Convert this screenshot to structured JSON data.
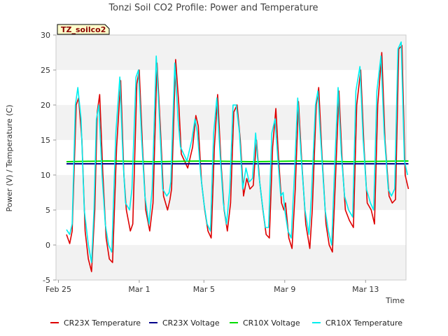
{
  "chart_data": {
    "type": "line",
    "title": "Tonzi Soil CO2 Profile: Power and Temperature",
    "badge": "TZ_soilco2",
    "xlabel": "Time",
    "ylabel": "Power (V) / Temperature (C)",
    "xlim": [
      -0.15,
      21.5
    ],
    "ylim": [
      -5,
      30
    ],
    "x_units": "days since Feb 25",
    "x_ticks": [
      {
        "x": 0,
        "label": "Feb 25"
      },
      {
        "x": 5,
        "label": "Mar 1"
      },
      {
        "x": 9,
        "label": "Mar 5"
      },
      {
        "x": 14,
        "label": "Mar 9"
      },
      {
        "x": 19,
        "label": "Mar 13"
      }
    ],
    "y_ticks": [
      -5,
      0,
      5,
      10,
      15,
      20,
      25,
      30
    ],
    "grid": "horizontal bands",
    "legend_position": "bottom",
    "series": [
      {
        "name": "CR23X Temperature",
        "color": "#dd0000",
        "values": [
          [
            0.5,
            1.5
          ],
          [
            0.7,
            0.2
          ],
          [
            0.85,
            2.0
          ],
          [
            1.1,
            20
          ],
          [
            1.25,
            21
          ],
          [
            1.45,
            15
          ],
          [
            1.65,
            2.0
          ],
          [
            1.85,
            -2.0
          ],
          [
            2.05,
            -3.8
          ],
          [
            2.25,
            5
          ],
          [
            2.4,
            19
          ],
          [
            2.55,
            21.5
          ],
          [
            2.75,
            10
          ],
          [
            2.95,
            1.0
          ],
          [
            3.15,
            -2.0
          ],
          [
            3.35,
            -2.5
          ],
          [
            3.6,
            14
          ],
          [
            3.85,
            23.5
          ],
          [
            4.05,
            10
          ],
          [
            4.2,
            5.0
          ],
          [
            4.45,
            2.0
          ],
          [
            4.6,
            3.0
          ],
          [
            4.85,
            23
          ],
          [
            5.0,
            25
          ],
          [
            5.2,
            14
          ],
          [
            5.4,
            5.0
          ],
          [
            5.65,
            2.0
          ],
          [
            5.85,
            6.0
          ],
          [
            6.1,
            26
          ],
          [
            6.3,
            17
          ],
          [
            6.5,
            7.0
          ],
          [
            6.75,
            5.0
          ],
          [
            6.9,
            6.5
          ],
          [
            7.0,
            8.0
          ],
          [
            7.25,
            26.5
          ],
          [
            7.45,
            20
          ],
          [
            7.6,
            13
          ],
          [
            7.8,
            12
          ],
          [
            8.0,
            11
          ],
          [
            8.3,
            14
          ],
          [
            8.5,
            18.5
          ],
          [
            8.65,
            17
          ],
          [
            8.85,
            9.0
          ],
          [
            9.05,
            5.0
          ],
          [
            9.25,
            2.0
          ],
          [
            9.45,
            1.0
          ],
          [
            9.65,
            14
          ],
          [
            9.85,
            21.5
          ],
          [
            10.05,
            12
          ],
          [
            10.25,
            5.0
          ],
          [
            10.45,
            2.0
          ],
          [
            10.65,
            6.0
          ],
          [
            10.85,
            19
          ],
          [
            11.05,
            20
          ],
          [
            11.25,
            15
          ],
          [
            11.45,
            7.0
          ],
          [
            11.65,
            9.5
          ],
          [
            11.85,
            8.0
          ],
          [
            12.05,
            8.5
          ],
          [
            12.25,
            15
          ],
          [
            12.45,
            9.0
          ],
          [
            12.65,
            5.0
          ],
          [
            12.85,
            1.5
          ],
          [
            13.05,
            1.0
          ],
          [
            13.25,
            14
          ],
          [
            13.45,
            19.5
          ],
          [
            13.6,
            13
          ],
          [
            13.8,
            6.0
          ],
          [
            13.95,
            5.0
          ],
          [
            14.05,
            6.0
          ],
          [
            14.25,
            1.0
          ],
          [
            14.45,
            -0.5
          ],
          [
            14.65,
            8.0
          ],
          [
            14.85,
            20.5
          ],
          [
            15.05,
            12
          ],
          [
            15.3,
            3.0
          ],
          [
            15.55,
            -0.5
          ],
          [
            15.7,
            5.0
          ],
          [
            15.95,
            20
          ],
          [
            16.1,
            22.5
          ],
          [
            16.3,
            13
          ],
          [
            16.55,
            3.0
          ],
          [
            16.75,
            0.0
          ],
          [
            16.95,
            -1.0
          ],
          [
            17.15,
            10
          ],
          [
            17.35,
            22
          ],
          [
            17.55,
            12
          ],
          [
            17.75,
            5.0
          ],
          [
            18.0,
            3.5
          ],
          [
            18.25,
            2.5
          ],
          [
            18.45,
            20
          ],
          [
            18.7,
            25
          ],
          [
            18.9,
            14
          ],
          [
            19.1,
            6.0
          ],
          [
            19.35,
            5.0
          ],
          [
            19.55,
            3.0
          ],
          [
            19.75,
            20
          ],
          [
            20.0,
            27.5
          ],
          [
            20.2,
            15
          ],
          [
            20.45,
            7.0
          ],
          [
            20.65,
            6.0
          ],
          [
            20.85,
            6.5
          ],
          [
            21.05,
            28
          ],
          [
            21.25,
            28.5
          ],
          [
            21.45,
            10
          ],
          [
            21.65,
            8.0
          ]
        ]
      },
      {
        "name": "CR23X Voltage",
        "color": "#00008b",
        "values": [
          [
            0.5,
            11.6
          ],
          [
            21.65,
            11.6
          ]
        ]
      },
      {
        "name": "CR10X Voltage",
        "color": "#00dd00",
        "values": [
          [
            0.5,
            11.9
          ],
          [
            3.0,
            12.0
          ],
          [
            6.0,
            11.9
          ],
          [
            9.0,
            12.0
          ],
          [
            12.0,
            11.9
          ],
          [
            15.0,
            12.0
          ],
          [
            18.0,
            11.9
          ],
          [
            21.65,
            12.0
          ]
        ]
      },
      {
        "name": "CR10X Temperature",
        "color": "#00eeee",
        "values": [
          [
            0.5,
            2.2
          ],
          [
            0.7,
            1.5
          ],
          [
            0.85,
            3.0
          ],
          [
            1.05,
            20
          ],
          [
            1.2,
            22.5
          ],
          [
            1.4,
            18
          ],
          [
            1.6,
            5.0
          ],
          [
            1.85,
            0.0
          ],
          [
            2.05,
            -2.5
          ],
          [
            2.2,
            5.0
          ],
          [
            2.35,
            18
          ],
          [
            2.5,
            20
          ],
          [
            2.7,
            10
          ],
          [
            2.9,
            3.0
          ],
          [
            3.1,
            0.0
          ],
          [
            3.3,
            -1.0
          ],
          [
            3.55,
            16
          ],
          [
            3.8,
            24
          ],
          [
            4.0,
            12
          ],
          [
            4.15,
            6.0
          ],
          [
            4.4,
            5.0
          ],
          [
            4.55,
            8.0
          ],
          [
            4.8,
            24
          ],
          [
            4.95,
            25
          ],
          [
            5.15,
            15
          ],
          [
            5.35,
            7.0
          ],
          [
            5.6,
            3.0
          ],
          [
            5.8,
            8.0
          ],
          [
            6.05,
            27
          ],
          [
            6.25,
            18
          ],
          [
            6.45,
            8.0
          ],
          [
            6.7,
            7.0
          ],
          [
            6.85,
            7.5
          ],
          [
            6.95,
            9.0
          ],
          [
            7.2,
            26
          ],
          [
            7.4,
            18
          ],
          [
            7.55,
            14
          ],
          [
            7.75,
            13
          ],
          [
            7.95,
            12
          ],
          [
            8.25,
            15
          ],
          [
            8.45,
            18
          ],
          [
            8.6,
            16
          ],
          [
            8.8,
            10
          ],
          [
            9.0,
            6.0
          ],
          [
            9.2,
            3.0
          ],
          [
            9.4,
            2.0
          ],
          [
            9.6,
            16
          ],
          [
            9.8,
            21
          ],
          [
            10.0,
            13
          ],
          [
            10.2,
            6.0
          ],
          [
            10.4,
            3.0
          ],
          [
            10.6,
            8.0
          ],
          [
            10.8,
            20
          ],
          [
            11.0,
            20
          ],
          [
            11.2,
            16
          ],
          [
            11.4,
            8.0
          ],
          [
            11.6,
            11
          ],
          [
            11.8,
            9.0
          ],
          [
            12.0,
            9.5
          ],
          [
            12.2,
            16
          ],
          [
            12.4,
            10
          ],
          [
            12.6,
            6.0
          ],
          [
            12.8,
            2.5
          ],
          [
            13.0,
            2.5
          ],
          [
            13.2,
            16
          ],
          [
            13.4,
            18
          ],
          [
            13.55,
            13
          ],
          [
            13.75,
            7.0
          ],
          [
            13.9,
            7.5
          ],
          [
            14.0,
            5.0
          ],
          [
            14.2,
            2.0
          ],
          [
            14.4,
            1.0
          ],
          [
            14.6,
            10
          ],
          [
            14.8,
            21
          ],
          [
            15.0,
            13
          ],
          [
            15.25,
            5.0
          ],
          [
            15.5,
            1.5
          ],
          [
            15.65,
            7.0
          ],
          [
            15.9,
            20
          ],
          [
            16.05,
            22
          ],
          [
            16.25,
            14
          ],
          [
            16.5,
            5.0
          ],
          [
            16.7,
            2.0
          ],
          [
            16.9,
            0.0
          ],
          [
            17.1,
            12
          ],
          [
            17.3,
            22.5
          ],
          [
            17.5,
            13
          ],
          [
            17.7,
            7.0
          ],
          [
            17.95,
            5.0
          ],
          [
            18.2,
            4.0
          ],
          [
            18.4,
            22
          ],
          [
            18.65,
            25.5
          ],
          [
            18.85,
            15
          ],
          [
            19.05,
            8.0
          ],
          [
            19.3,
            6.0
          ],
          [
            19.5,
            5.0
          ],
          [
            19.7,
            22
          ],
          [
            19.95,
            27
          ],
          [
            20.15,
            16
          ],
          [
            20.4,
            8.0
          ],
          [
            20.6,
            7.0
          ],
          [
            20.8,
            8.0
          ],
          [
            21.0,
            28
          ],
          [
            21.2,
            29
          ],
          [
            21.4,
            12
          ],
          [
            21.6,
            10
          ]
        ]
      }
    ]
  }
}
